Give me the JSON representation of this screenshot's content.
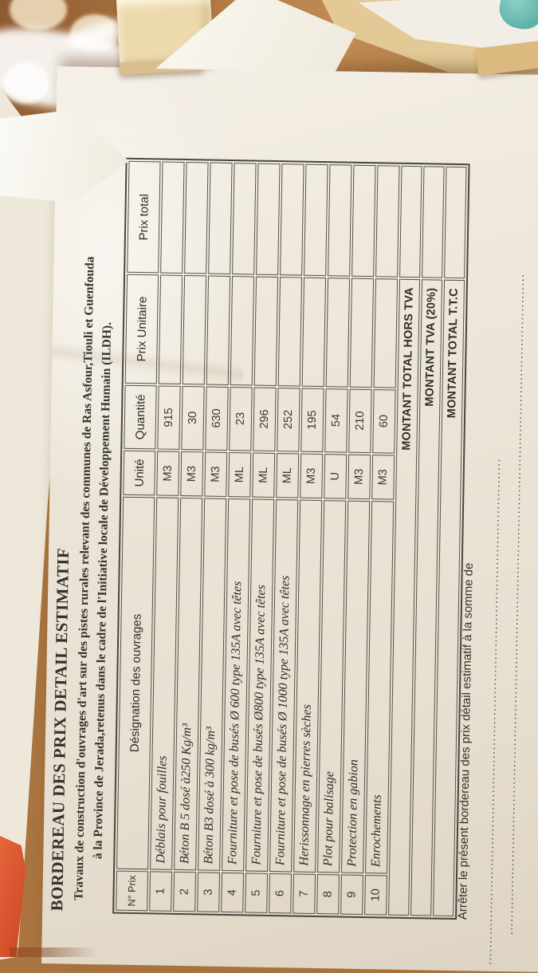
{
  "photo": {
    "background_objects": {
      "wood_table_color": "#b17a45",
      "teal_object_color": "#62b5ab",
      "orange_object_color": "#d04b25",
      "paper_color": "#ece5d7"
    },
    "document": {
      "title": "BORDEREAU DES PRIX DETAIL ESTIMATIF",
      "subtitle_line1": "Travaux  de construction d'ouvrages d'art sur des pistes rurales  relevant des communes de Ras Asfour,Tiouli et Guenfouda",
      "subtitle_line2": "à la Province de Jerada,retenus dans  le cadre de l'Initiative locale de Développement Humain (ILDH).",
      "table": {
        "headers": [
          "N° Prix",
          "Désignation des ouvrages",
          "Unité",
          "Quantité",
          "Prix Unitaire",
          "Prix total"
        ],
        "rows": [
          {
            "num": "1",
            "designation": "Déblais pour fouilles",
            "unit": "M3",
            "qty": "915",
            "prix_unitaire": "",
            "prix_total": ""
          },
          {
            "num": "2",
            "designation": "Béton B 5 dosé à250 Kg/m³",
            "unit": "M3",
            "qty": "30",
            "prix_unitaire": "",
            "prix_total": ""
          },
          {
            "num": "3",
            "designation": "Béton B3 dosé à 300 kg/m³",
            "unit": "M3",
            "qty": "630",
            "prix_unitaire": "",
            "prix_total": ""
          },
          {
            "num": "4",
            "designation": "Fourniture et pose de  busés Ø 600 type 135A  avec têtes",
            "unit": "ML",
            "qty": "23",
            "prix_unitaire": "",
            "prix_total": ""
          },
          {
            "num": "5",
            "designation": "Fourniture et pose de  busés Ø800 type 135A  avec têtes",
            "unit": "ML",
            "qty": "296",
            "prix_unitaire": "",
            "prix_total": ""
          },
          {
            "num": "6",
            "designation": "Fourniture et pose de  busés Ø 1000 type 135A  avec têtes",
            "unit": "ML",
            "qty": "252",
            "prix_unitaire": "",
            "prix_total": ""
          },
          {
            "num": "7",
            "designation": "Herissonnage en pierres sèches",
            "unit": "M3",
            "qty": "195",
            "prix_unitaire": "",
            "prix_total": ""
          },
          {
            "num": "8",
            "designation": "Plot pour balisage",
            "unit": "U",
            "qty": "54",
            "prix_unitaire": "",
            "prix_total": ""
          },
          {
            "num": "9",
            "designation": "Protection en gabion",
            "unit": "M3",
            "qty": "210",
            "prix_unitaire": "",
            "prix_total": ""
          },
          {
            "num": "10",
            "designation": "Enrochements",
            "unit": "M3",
            "qty": "60",
            "prix_unitaire": "",
            "prix_total": ""
          }
        ],
        "total_rows": [
          {
            "label": "MONTANT TOTAL HORS TVA",
            "value": ""
          },
          {
            "label": "MONTANT TVA  (20%)",
            "value": ""
          },
          {
            "label": "MONTANT TOTAL T.T.C",
            "value": ""
          }
        ]
      },
      "footer": {
        "closing_line": "Arrêter le présent bordereau des prix détail estimatif  à la somme de",
        "dots_line1": "......................................................................................................................",
        "dots_line2": ".........................................................................................................................................................."
      }
    }
  }
}
